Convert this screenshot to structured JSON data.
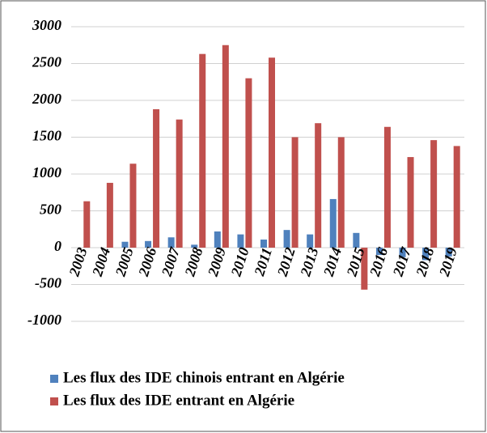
{
  "chart_data": {
    "type": "bar",
    "categories": [
      "2003",
      "2004",
      "2005",
      "2006",
      "2007",
      "2008",
      "2009",
      "2010",
      "2011",
      "2012",
      "2013",
      "2014",
      "2015",
      "2016",
      "2017",
      "2018",
      "2019"
    ],
    "series": [
      {
        "name": "Les flux des IDE chinois entrant en Algérie",
        "color": "#4f81bd",
        "values": [
          0,
          0,
          80,
          90,
          140,
          40,
          220,
          180,
          110,
          240,
          180,
          660,
          200,
          -100,
          -130,
          -170,
          -120
        ]
      },
      {
        "name": "Les flux des IDE entrant en Algérie",
        "color": "#c0504d",
        "values": [
          630,
          880,
          1140,
          1880,
          1740,
          2630,
          2750,
          2300,
          2580,
          1500,
          1690,
          1500,
          -570,
          1640,
          1230,
          1460,
          1380
        ]
      }
    ],
    "ylim": [
      -1000,
      3000
    ],
    "yticks": [
      -1000,
      -500,
      0,
      500,
      1000,
      1500,
      2000,
      2500,
      3000
    ],
    "grid": true
  }
}
